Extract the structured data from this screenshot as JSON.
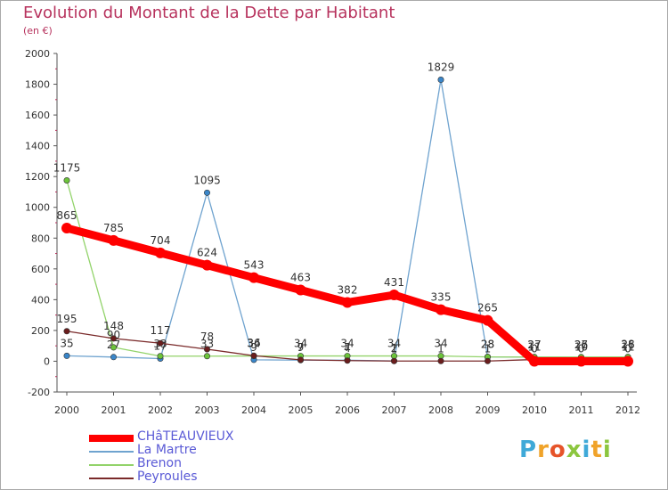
{
  "chart_data": {
    "type": "line",
    "title": "Evolution du Montant de la Dette par Habitant",
    "subtitle": "(en €)",
    "x": [
      "2000",
      "2001",
      "2002",
      "2003",
      "2004",
      "2005",
      "2006",
      "2007",
      "2008",
      "2009",
      "2010",
      "2011",
      "2012"
    ],
    "ylim": [
      -200,
      2000
    ],
    "yticks": [
      "-200",
      "0",
      "200",
      "400",
      "600",
      "800",
      "1000",
      "1200",
      "1400",
      "1600",
      "1800",
      "2000"
    ],
    "grid": false,
    "legend_position": "bottom-left",
    "series": [
      {
        "name": "La Martre",
        "color": "#6fa3cf",
        "marker": "#3a86c9",
        "values": [
          35,
          27,
          17,
          1095,
          9,
          7,
          7,
          2,
          1829,
          28,
          27,
          26,
          26
        ],
        "labels": [
          "35",
          "27",
          "17",
          "1095",
          "9",
          "7",
          "7",
          "2",
          "1829",
          "28",
          "27",
          "26",
          "26"
        ]
      },
      {
        "name": "Brenon",
        "color": "#92d36a",
        "marker": "#6cc43a",
        "values": [
          1175,
          90,
          33,
          33,
          34,
          34,
          34,
          34,
          34,
          28,
          27,
          27,
          28
        ],
        "labels": [
          "1175",
          "90",
          "33",
          "33",
          "34",
          "34",
          "34",
          "34",
          "34",
          "28",
          "27",
          "27",
          "28"
        ]
      },
      {
        "name": "Peyroules",
        "color": "#7a2a2a",
        "marker": "#6a1d1d",
        "values": [
          195,
          148,
          117,
          78,
          36,
          9,
          4,
          1,
          1,
          1,
          11,
          10,
          11
        ],
        "labels": [
          "195",
          "148",
          "117",
          "78",
          "36",
          "9",
          "4",
          "1",
          "1",
          "1",
          "11",
          "10",
          "11"
        ]
      },
      {
        "name": "CHâTEAUVIEUX",
        "color": "#ff0000",
        "marker": "#ff0000",
        "values": [
          865,
          785,
          704,
          624,
          543,
          463,
          382,
          431,
          335,
          265,
          0,
          0,
          0
        ],
        "labels": [
          "865",
          "785",
          "704",
          "624",
          "543",
          "463",
          "382",
          "431",
          "335",
          "265",
          "0",
          "0",
          "0"
        ]
      }
    ]
  },
  "brand": {
    "letters": [
      "P",
      "r",
      "o",
      "x",
      "i",
      "t",
      "i"
    ],
    "colors": [
      "#3fa9d8",
      "#f0a32a",
      "#e6542a",
      "#8cc63f",
      "#3fa9d8",
      "#f0a32a",
      "#8cc63f"
    ]
  }
}
